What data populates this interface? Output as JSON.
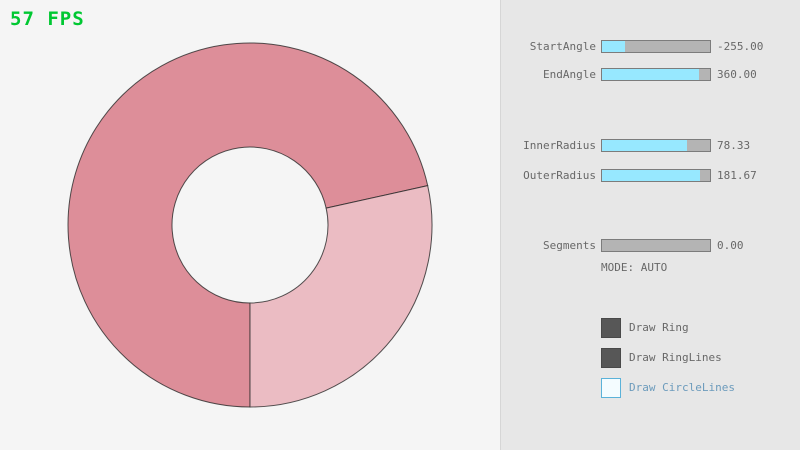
{
  "fps": {
    "text": "57 FPS",
    "color": "#00C832"
  },
  "ring": {
    "color_single": "#EBBCC3",
    "color_overlap": "#DD8E99",
    "outline_color": "#282828"
  },
  "panel": {
    "background": "#E7E7E7",
    "accent_fill": "#97E8FF",
    "sliders": [
      {
        "name": "StartAngle",
        "value": "-255.00",
        "fill_pct": 21.7
      },
      {
        "name": "EndAngle",
        "value": "360.00",
        "fill_pct": 90.0
      },
      {
        "name": "InnerRadius",
        "value": "78.33",
        "fill_pct": 78.3
      },
      {
        "name": "OuterRadius",
        "value": "181.67",
        "fill_pct": 90.8
      },
      {
        "name": "Segments",
        "value": "0.00",
        "fill_pct": 0
      }
    ],
    "mode_text": "MODE: AUTO",
    "checkboxes": [
      {
        "label": "Draw Ring",
        "checked": true
      },
      {
        "label": "Draw RingLines",
        "checked": true
      },
      {
        "label": "Draw CircleLines",
        "checked": false
      }
    ]
  }
}
